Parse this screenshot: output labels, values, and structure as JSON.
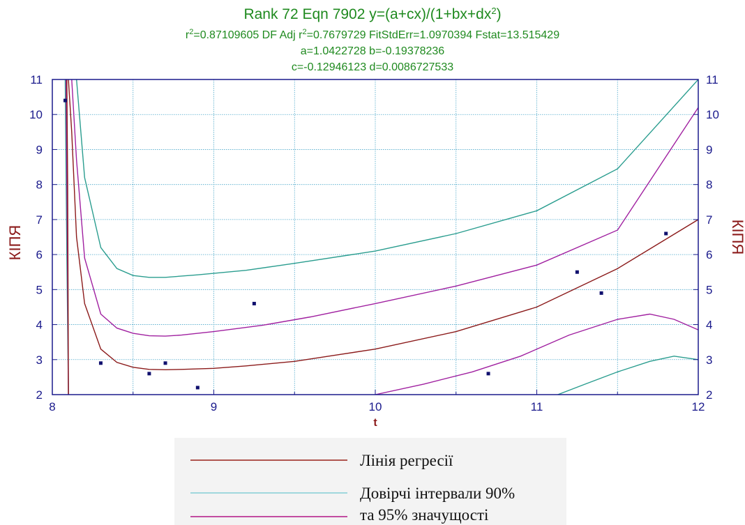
{
  "chart_data": {
    "type": "line",
    "title": "Rank 72  Eqn 7902  y=(a+cx)/(1+bx+dx",
    "title_sup": "2",
    "title_end": ")",
    "stats": {
      "r2_prefix": "r",
      "r2_sup": "2",
      "r2_value": "=0.87109605  DF Adj r",
      "adj_sup": "2",
      "adj_rest": "=0.7679729  FitStdErr=1.0970394  Fstat=13.515429"
    },
    "params_line1": "a=1.0422728 b=-0.19378236",
    "params_line2": "c=-0.12946123 d=0.0086727533",
    "xlabel": "t",
    "ylabel": "КІПЯ",
    "xlim": [
      8,
      12
    ],
    "ylim": [
      2,
      11
    ],
    "x_ticks": [
      8,
      9,
      10,
      11,
      12
    ],
    "y_ticks": [
      2,
      3,
      4,
      5,
      6,
      7,
      8,
      9,
      10,
      11
    ],
    "grid": true,
    "coefficients": {
      "a": 1.0422728,
      "b": -0.19378236,
      "c": -0.12946123,
      "d": 0.0086727533
    },
    "points": [
      {
        "x": 8.08,
        "y": 10.4
      },
      {
        "x": 8.3,
        "y": 2.9
      },
      {
        "x": 8.6,
        "y": 2.6
      },
      {
        "x": 8.7,
        "y": 2.9
      },
      {
        "x": 8.9,
        "y": 2.2
      },
      {
        "x": 9.25,
        "y": 4.6
      },
      {
        "x": 10.7,
        "y": 2.6
      },
      {
        "x": 11.25,
        "y": 5.5
      },
      {
        "x": 11.4,
        "y": 4.9
      },
      {
        "x": 11.8,
        "y": 6.6
      }
    ],
    "series": [
      {
        "name": "Лінія регресії",
        "color": "#8b1a1a",
        "kind": "fit",
        "x": [
          8.1,
          8.12,
          8.15,
          8.2,
          8.3,
          8.4,
          8.5,
          8.6,
          8.7,
          8.8,
          9.0,
          9.2,
          9.5,
          10.0,
          10.5,
          11.0,
          11.5,
          12.0
        ],
        "y": [
          11,
          9.5,
          6.5,
          4.6,
          3.3,
          2.92,
          2.78,
          2.72,
          2.71,
          2.72,
          2.75,
          2.82,
          2.95,
          3.3,
          3.8,
          4.5,
          5.6,
          7.0
        ]
      },
      {
        "name": "Довірчі інтервали 90%",
        "color": "#2a9d8f",
        "kind": "upper90",
        "x": [
          8.15,
          8.2,
          8.3,
          8.4,
          8.5,
          8.6,
          8.7,
          8.9,
          9.2,
          9.5,
          10.0,
          10.5,
          11.0,
          11.5,
          12.0
        ],
        "y": [
          11,
          8.2,
          6.2,
          5.6,
          5.4,
          5.35,
          5.35,
          5.42,
          5.55,
          5.75,
          6.1,
          6.6,
          7.25,
          8.45,
          11.0
        ]
      },
      {
        "name": "Довірчі інтервали 90%",
        "color": "#2a9d8f",
        "kind": "lower90",
        "x": [
          11.13,
          11.3,
          11.5,
          11.7,
          11.85,
          12.0
        ],
        "y": [
          2.0,
          2.3,
          2.65,
          2.95,
          3.1,
          3.0
        ]
      },
      {
        "name": "та 95% значущості",
        "color": "#a020a0",
        "kind": "upper95",
        "x": [
          8.12,
          8.15,
          8.2,
          8.3,
          8.4,
          8.5,
          8.6,
          8.7,
          8.8,
          9.0,
          9.3,
          9.6,
          10.0,
          10.5,
          11.0,
          11.5,
          12.0
        ],
        "y": [
          11,
          8.7,
          5.9,
          4.3,
          3.9,
          3.75,
          3.68,
          3.67,
          3.7,
          3.8,
          3.98,
          4.22,
          4.6,
          5.1,
          5.7,
          6.7,
          10.2
        ]
      },
      {
        "name": "та 95% значущості",
        "color": "#a020a0",
        "kind": "lower95",
        "x": [
          10.0,
          10.3,
          10.6,
          10.9,
          11.2,
          11.5,
          11.7,
          11.85,
          12.0
        ],
        "y": [
          2.0,
          2.3,
          2.65,
          3.1,
          3.7,
          4.15,
          4.3,
          4.15,
          3.85
        ]
      },
      {
        "name": "",
        "color": "#2a9d8f",
        "kind": "spike_teal",
        "x": [
          8.08,
          8.09,
          8.1
        ],
        "y": [
          11,
          6.0,
          2.0
        ]
      },
      {
        "name": "",
        "color": "#a020a0",
        "kind": "spike_purple",
        "x": [
          8.085,
          8.092,
          8.1
        ],
        "y": [
          11,
          7.0,
          2.0
        ]
      },
      {
        "name": "",
        "color": "#8b1a1a",
        "kind": "spike_red",
        "x": [
          8.09,
          8.095,
          8.1
        ],
        "y": [
          11,
          8.0,
          2.0
        ]
      }
    ],
    "legend": [
      {
        "label": "Лінія регресії",
        "color": "#b0554f"
      },
      {
        "label": "Довірчі інтервали 90%",
        "color": "#9fd7dd"
      },
      {
        "label": "та 95% значущості",
        "color": "#c24ca0"
      }
    ]
  }
}
